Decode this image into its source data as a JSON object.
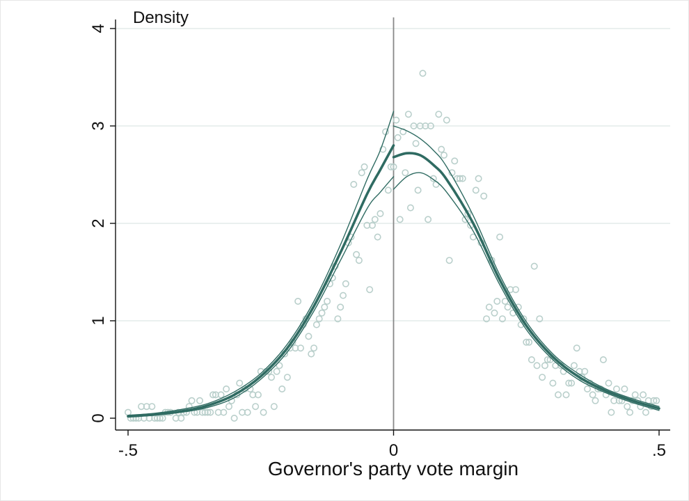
{
  "chart_data": {
    "type": "scatter",
    "ylabel": "Density",
    "xlabel": "Governor's  party vote margin",
    "xlim": [
      -0.5,
      0.5
    ],
    "ylim": [
      0,
      4
    ],
    "x_ticks": [
      {
        "value": -0.5,
        "label": "-.5"
      },
      {
        "value": 0,
        "label": "0"
      },
      {
        "value": 0.5,
        "label": ".5"
      }
    ],
    "y_ticks": [
      {
        "value": 0,
        "label": "0"
      },
      {
        "value": 1,
        "label": "1"
      },
      {
        "value": 2,
        "label": "2"
      },
      {
        "value": 3,
        "label": "3"
      },
      {
        "value": 4,
        "label": "4"
      }
    ],
    "grid": "horizontal",
    "vertical_reference_line": 0,
    "colors": {
      "fit_line": "#2f6b62",
      "ci_line": "#2f6b62",
      "points": "#b9cfcb",
      "reference": "#888888",
      "grid": "#e3ecea"
    },
    "series": [
      {
        "role": "binned density points",
        "points": [
          [
            -0.5,
            0.06
          ],
          [
            -0.495,
            0.0
          ],
          [
            -0.49,
            0.0
          ],
          [
            -0.485,
            0.0
          ],
          [
            -0.48,
            0.0
          ],
          [
            -0.475,
            0.12
          ],
          [
            -0.47,
            0.0
          ],
          [
            -0.465,
            0.12
          ],
          [
            -0.46,
            0.0
          ],
          [
            -0.455,
            0.12
          ],
          [
            -0.45,
            0.0
          ],
          [
            -0.445,
            0.0
          ],
          [
            -0.44,
            0.0
          ],
          [
            -0.435,
            0.0
          ],
          [
            -0.43,
            0.06
          ],
          [
            -0.425,
            0.06
          ],
          [
            -0.42,
            0.06
          ],
          [
            -0.41,
            0.0
          ],
          [
            -0.405,
            0.06
          ],
          [
            -0.4,
            0.0
          ],
          [
            -0.395,
            0.06
          ],
          [
            -0.39,
            0.06
          ],
          [
            -0.385,
            0.12
          ],
          [
            -0.38,
            0.18
          ],
          [
            -0.375,
            0.06
          ],
          [
            -0.37,
            0.06
          ],
          [
            -0.365,
            0.18
          ],
          [
            -0.36,
            0.06
          ],
          [
            -0.355,
            0.06
          ],
          [
            -0.35,
            0.06
          ],
          [
            -0.345,
            0.06
          ],
          [
            -0.34,
            0.24
          ],
          [
            -0.335,
            0.24
          ],
          [
            -0.33,
            0.06
          ],
          [
            -0.325,
            0.24
          ],
          [
            -0.32,
            0.06
          ],
          [
            -0.315,
            0.3
          ],
          [
            -0.31,
            0.12
          ],
          [
            -0.305,
            0.18
          ],
          [
            -0.3,
            0.0
          ],
          [
            -0.295,
            0.24
          ],
          [
            -0.29,
            0.36
          ],
          [
            -0.285,
            0.06
          ],
          [
            -0.28,
            0.3
          ],
          [
            -0.275,
            0.06
          ],
          [
            -0.27,
            0.3
          ],
          [
            -0.265,
            0.24
          ],
          [
            -0.26,
            0.12
          ],
          [
            -0.255,
            0.24
          ],
          [
            -0.25,
            0.48
          ],
          [
            -0.245,
            0.06
          ],
          [
            -0.24,
            0.48
          ],
          [
            -0.235,
            0.48
          ],
          [
            -0.23,
            0.42
          ],
          [
            -0.225,
            0.12
          ],
          [
            -0.22,
            0.48
          ],
          [
            -0.215,
            0.54
          ],
          [
            -0.21,
            0.3
          ],
          [
            -0.205,
            0.66
          ],
          [
            -0.2,
            0.42
          ],
          [
            -0.195,
            0.72
          ],
          [
            -0.19,
            0.78
          ],
          [
            -0.185,
            0.72
          ],
          [
            -0.18,
            1.2
          ],
          [
            -0.175,
            0.72
          ],
          [
            -0.17,
            0.96
          ],
          [
            -0.165,
            1.02
          ],
          [
            -0.16,
            0.84
          ],
          [
            -0.155,
            0.66
          ],
          [
            -0.15,
            0.72
          ],
          [
            -0.145,
            0.96
          ],
          [
            -0.14,
            1.02
          ],
          [
            -0.135,
            1.08
          ],
          [
            -0.13,
            1.14
          ],
          [
            -0.125,
            1.2
          ],
          [
            -0.12,
            1.38
          ],
          [
            -0.115,
            1.44
          ],
          [
            -0.11,
            1.56
          ],
          [
            -0.105,
            1.02
          ],
          [
            -0.1,
            1.14
          ],
          [
            -0.095,
            1.26
          ],
          [
            -0.09,
            1.38
          ],
          [
            -0.085,
            1.8
          ],
          [
            -0.08,
            1.86
          ],
          [
            -0.075,
            2.4
          ],
          [
            -0.07,
            1.68
          ],
          [
            -0.065,
            1.62
          ],
          [
            -0.06,
            2.52
          ],
          [
            -0.055,
            2.58
          ],
          [
            -0.05,
            1.98
          ],
          [
            -0.045,
            1.32
          ],
          [
            -0.04,
            1.98
          ],
          [
            -0.035,
            2.04
          ],
          [
            -0.03,
            1.86
          ],
          [
            -0.025,
            2.1
          ],
          [
            -0.02,
            2.76
          ],
          [
            -0.015,
            2.94
          ],
          [
            -0.01,
            2.34
          ],
          [
            -0.005,
            2.58
          ],
          [
            0.0,
            2.58
          ],
          [
            0.005,
            3.06
          ],
          [
            0.008,
            2.88
          ],
          [
            0.012,
            2.04
          ],
          [
            0.018,
            2.94
          ],
          [
            0.022,
            2.52
          ],
          [
            0.028,
            3.12
          ],
          [
            0.032,
            2.16
          ],
          [
            0.038,
            3.0
          ],
          [
            0.042,
            2.82
          ],
          [
            0.046,
            2.34
          ],
          [
            0.05,
            3.0
          ],
          [
            0.055,
            3.54
          ],
          [
            0.06,
            3.0
          ],
          [
            0.065,
            2.04
          ],
          [
            0.07,
            3.0
          ],
          [
            0.075,
            2.46
          ],
          [
            0.08,
            2.4
          ],
          [
            0.085,
            3.12
          ],
          [
            0.09,
            2.76
          ],
          [
            0.095,
            2.7
          ],
          [
            0.1,
            3.06
          ],
          [
            0.105,
            1.62
          ],
          [
            0.11,
            2.52
          ],
          [
            0.115,
            2.64
          ],
          [
            0.12,
            2.46
          ],
          [
            0.125,
            2.46
          ],
          [
            0.13,
            2.46
          ],
          [
            0.135,
            2.04
          ],
          [
            0.14,
            2.1
          ],
          [
            0.145,
            1.98
          ],
          [
            0.15,
            1.86
          ],
          [
            0.155,
            2.34
          ],
          [
            0.16,
            2.46
          ],
          [
            0.165,
            1.8
          ],
          [
            0.17,
            2.28
          ],
          [
            0.175,
            1.02
          ],
          [
            0.18,
            1.14
          ],
          [
            0.185,
            1.62
          ],
          [
            0.19,
            1.08
          ],
          [
            0.195,
            1.2
          ],
          [
            0.2,
            1.86
          ],
          [
            0.205,
            1.02
          ],
          [
            0.21,
            1.2
          ],
          [
            0.215,
            1.14
          ],
          [
            0.22,
            1.32
          ],
          [
            0.225,
            1.08
          ],
          [
            0.23,
            1.32
          ],
          [
            0.235,
            1.14
          ],
          [
            0.24,
            0.96
          ],
          [
            0.245,
            1.02
          ],
          [
            0.25,
            0.78
          ],
          [
            0.255,
            0.78
          ],
          [
            0.26,
            0.6
          ],
          [
            0.265,
            1.56
          ],
          [
            0.27,
            0.54
          ],
          [
            0.275,
            1.02
          ],
          [
            0.28,
            0.42
          ],
          [
            0.285,
            0.54
          ],
          [
            0.29,
            0.6
          ],
          [
            0.295,
            0.6
          ],
          [
            0.3,
            0.36
          ],
          [
            0.305,
            0.54
          ],
          [
            0.31,
            0.24
          ],
          [
            0.315,
            0.54
          ],
          [
            0.32,
            0.48
          ],
          [
            0.325,
            0.24
          ],
          [
            0.33,
            0.36
          ],
          [
            0.335,
            0.36
          ],
          [
            0.34,
            0.54
          ],
          [
            0.345,
            0.72
          ],
          [
            0.35,
            0.48
          ],
          [
            0.355,
            0.42
          ],
          [
            0.36,
            0.48
          ],
          [
            0.365,
            0.3
          ],
          [
            0.37,
            0.36
          ],
          [
            0.375,
            0.24
          ],
          [
            0.38,
            0.18
          ],
          [
            0.385,
            0.3
          ],
          [
            0.39,
            0.3
          ],
          [
            0.395,
            0.6
          ],
          [
            0.4,
            0.24
          ],
          [
            0.405,
            0.36
          ],
          [
            0.41,
            0.06
          ],
          [
            0.415,
            0.18
          ],
          [
            0.42,
            0.3
          ],
          [
            0.425,
            0.18
          ],
          [
            0.43,
            0.18
          ],
          [
            0.435,
            0.3
          ],
          [
            0.44,
            0.12
          ],
          [
            0.445,
            0.06
          ],
          [
            0.45,
            0.18
          ],
          [
            0.455,
            0.24
          ],
          [
            0.46,
            0.18
          ],
          [
            0.465,
            0.12
          ],
          [
            0.47,
            0.24
          ],
          [
            0.475,
            0.06
          ],
          [
            0.48,
            0.18
          ],
          [
            0.485,
            0.12
          ],
          [
            0.49,
            0.18
          ],
          [
            0.495,
            0.18
          ]
        ]
      },
      {
        "role": "left fit",
        "x": [
          -0.5,
          -0.45,
          -0.4,
          -0.35,
          -0.3,
          -0.25,
          -0.2,
          -0.15,
          -0.1,
          -0.05,
          -0.025,
          0.0
        ],
        "y": [
          0.02,
          0.04,
          0.07,
          0.13,
          0.24,
          0.43,
          0.72,
          1.15,
          1.7,
          2.3,
          2.55,
          2.8
        ]
      },
      {
        "role": "left fit upper",
        "x": [
          -0.5,
          -0.45,
          -0.4,
          -0.35,
          -0.3,
          -0.25,
          -0.2,
          -0.15,
          -0.1,
          -0.05,
          -0.025,
          0.0
        ],
        "y": [
          0.03,
          0.05,
          0.09,
          0.15,
          0.27,
          0.46,
          0.76,
          1.2,
          1.78,
          2.45,
          2.75,
          3.15
        ]
      },
      {
        "role": "left fit lower",
        "x": [
          -0.5,
          -0.45,
          -0.4,
          -0.35,
          -0.3,
          -0.25,
          -0.2,
          -0.15,
          -0.1,
          -0.05,
          -0.025,
          0.0
        ],
        "y": [
          0.01,
          0.03,
          0.06,
          0.11,
          0.21,
          0.4,
          0.68,
          1.1,
          1.62,
          2.15,
          2.32,
          2.48
        ]
      },
      {
        "role": "right fit",
        "x": [
          0.0,
          0.025,
          0.05,
          0.075,
          0.1,
          0.15,
          0.2,
          0.25,
          0.3,
          0.35,
          0.4,
          0.45,
          0.5
        ],
        "y": [
          2.68,
          2.72,
          2.7,
          2.6,
          2.45,
          2.0,
          1.42,
          0.95,
          0.63,
          0.42,
          0.28,
          0.18,
          0.1
        ]
      },
      {
        "role": "right fit upper",
        "x": [
          0.0,
          0.025,
          0.05,
          0.075,
          0.1,
          0.15,
          0.2,
          0.25,
          0.3,
          0.35,
          0.4,
          0.45,
          0.5
        ],
        "y": [
          3.0,
          2.95,
          2.87,
          2.75,
          2.58,
          2.08,
          1.47,
          0.99,
          0.66,
          0.45,
          0.3,
          0.2,
          0.12
        ]
      },
      {
        "role": "right fit lower",
        "x": [
          0.0,
          0.025,
          0.05,
          0.075,
          0.1,
          0.15,
          0.2,
          0.25,
          0.3,
          0.35,
          0.4,
          0.45,
          0.5
        ],
        "y": [
          2.35,
          2.48,
          2.52,
          2.45,
          2.32,
          1.92,
          1.37,
          0.91,
          0.6,
          0.39,
          0.26,
          0.16,
          0.08
        ]
      }
    ]
  }
}
